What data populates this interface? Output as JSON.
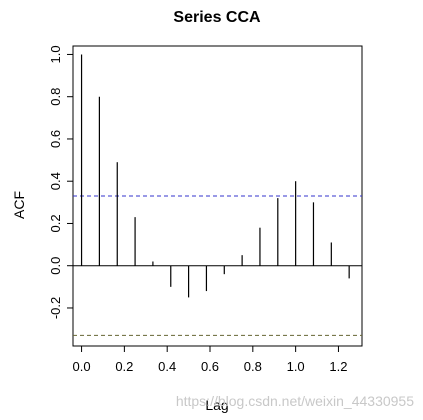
{
  "chart_data": {
    "type": "bar",
    "title": "Series  CCA",
    "xlabel": "Lag",
    "ylabel": "ACF",
    "xlim": [
      -0.04,
      1.31
    ],
    "ylim": [
      -0.38,
      1.04
    ],
    "x_ticks": [
      "0.0",
      "0.2",
      "0.4",
      "0.6",
      "0.8",
      "1.0",
      "1.2"
    ],
    "x_tick_values": [
      0.0,
      0.2,
      0.4,
      0.6,
      0.8,
      1.0,
      1.2
    ],
    "y_ticks": [
      "-0.2",
      "0.0",
      "0.2",
      "0.4",
      "0.6",
      "0.8",
      "1.0"
    ],
    "y_tick_values": [
      -0.2,
      0.0,
      0.2,
      0.4,
      0.6,
      0.8,
      1.0
    ],
    "lags": [
      0.0,
      0.0833,
      0.1667,
      0.25,
      0.3333,
      0.4167,
      0.5,
      0.5833,
      0.6667,
      0.75,
      0.8333,
      0.9167,
      1.0,
      1.0833,
      1.1667,
      1.25
    ],
    "acf": [
      1.0,
      0.8,
      0.49,
      0.23,
      0.02,
      -0.1,
      -0.15,
      -0.12,
      -0.04,
      0.05,
      0.18,
      0.32,
      0.4,
      0.3,
      0.11,
      -0.06
    ],
    "confidence_bounds": [
      0.33,
      -0.33
    ],
    "confidence_colors": [
      "#3333cc",
      "#666633"
    ],
    "grid": false
  },
  "watermark": "https://blog.csdn.net/weixin_44330955"
}
